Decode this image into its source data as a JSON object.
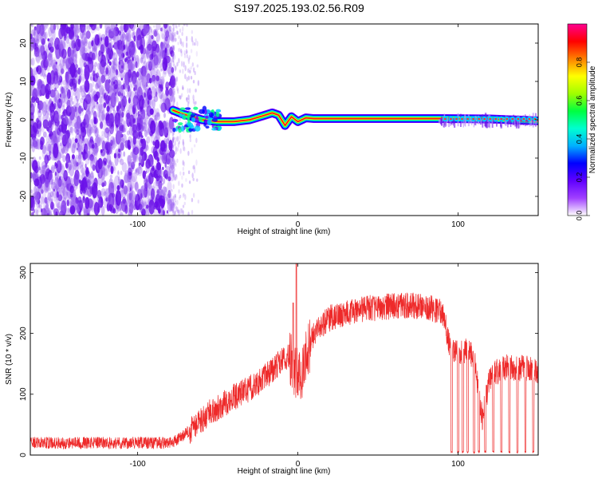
{
  "title": "S197.2025.193.02.56.R09",
  "colors": {
    "snr_line": "#ee2a2a",
    "noise_speckle": "#9a60f0",
    "dense_speckle": "#6a10e8",
    "colorbar": [
      "#ffffff",
      "#a040ff",
      "#6000ff",
      "#0000ff",
      "#00b0ff",
      "#00ffd0",
      "#00ff40",
      "#a0ff00",
      "#ffff00",
      "#ff8000",
      "#ff0000",
      "#ff0090"
    ]
  },
  "chart_data": [
    {
      "type": "heatmap",
      "title": "S197.2025.193.02.56.R09",
      "xlabel": "Height of straight line (km)",
      "ylabel": "Frequency (Hz)",
      "xlim": [
        -167,
        150
      ],
      "ylim": [
        -25,
        25
      ],
      "xticks": [
        -100,
        0,
        100
      ],
      "yticks": [
        -20,
        -10,
        0,
        10,
        20
      ],
      "colorbar": {
        "label": "Normalized spectral amplitude",
        "range": [
          0,
          1
        ],
        "ticks": [
          "0.0",
          "0.2",
          "0.4",
          "0.6",
          "0.8"
        ]
      },
      "noise_region_x": [
        -167,
        -78
      ],
      "tone_track": [
        {
          "x": -78,
          "y": 2.5
        },
        {
          "x": -72,
          "y": 1.5
        },
        {
          "x": -66,
          "y": 0.8
        },
        {
          "x": -60,
          "y": 0.0
        },
        {
          "x": -50,
          "y": -0.5
        },
        {
          "x": -40,
          "y": -0.5
        },
        {
          "x": -30,
          "y": 0.0
        },
        {
          "x": -22,
          "y": 1.0
        },
        {
          "x": -16,
          "y": 1.8
        },
        {
          "x": -12,
          "y": 1.2
        },
        {
          "x": -8,
          "y": -1.5
        },
        {
          "x": -4,
          "y": 0.8
        },
        {
          "x": 0,
          "y": -0.5
        },
        {
          "x": 5,
          "y": 0.5
        },
        {
          "x": 10,
          "y": 0.3
        },
        {
          "x": 50,
          "y": 0.3
        },
        {
          "x": 90,
          "y": 0.3
        },
        {
          "x": 120,
          "y": 0.2
        },
        {
          "x": 150,
          "y": -0.3
        }
      ]
    },
    {
      "type": "line",
      "xlabel": "Height of straight line (km)",
      "ylabel": "SNR (10 * v/v)",
      "xlim": [
        -167,
        150
      ],
      "ylim": [
        0,
        315
      ],
      "xticks": [
        -100,
        0,
        100
      ],
      "yticks": [
        0,
        100,
        200,
        300
      ],
      "series": [
        {
          "envelope_x": [
            -167,
            -80,
            -75,
            -65,
            -55,
            -40,
            -30,
            -20,
            -12,
            -6,
            -2,
            0,
            2,
            5,
            10,
            20,
            40,
            60,
            80,
            90,
            95,
            100,
            105,
            110,
            115,
            120,
            130,
            150
          ],
          "mean_y": [
            20,
            20,
            25,
            45,
            70,
            95,
            110,
            130,
            150,
            165,
            140,
            130,
            120,
            160,
            200,
            225,
            240,
            245,
            245,
            235,
            180,
            170,
            170,
            160,
            60,
            130,
            145,
            140
          ],
          "spike_y": [
            {
              "x": -1,
              "y": 315
            },
            {
              "x": -3,
              "y": 250
            },
            {
              "x": 25,
              "y": 215
            }
          ],
          "dropouts_x": [
            96,
            100,
            103,
            106,
            110,
            113,
            117,
            122,
            127,
            132,
            137,
            142,
            147
          ]
        }
      ]
    }
  ]
}
